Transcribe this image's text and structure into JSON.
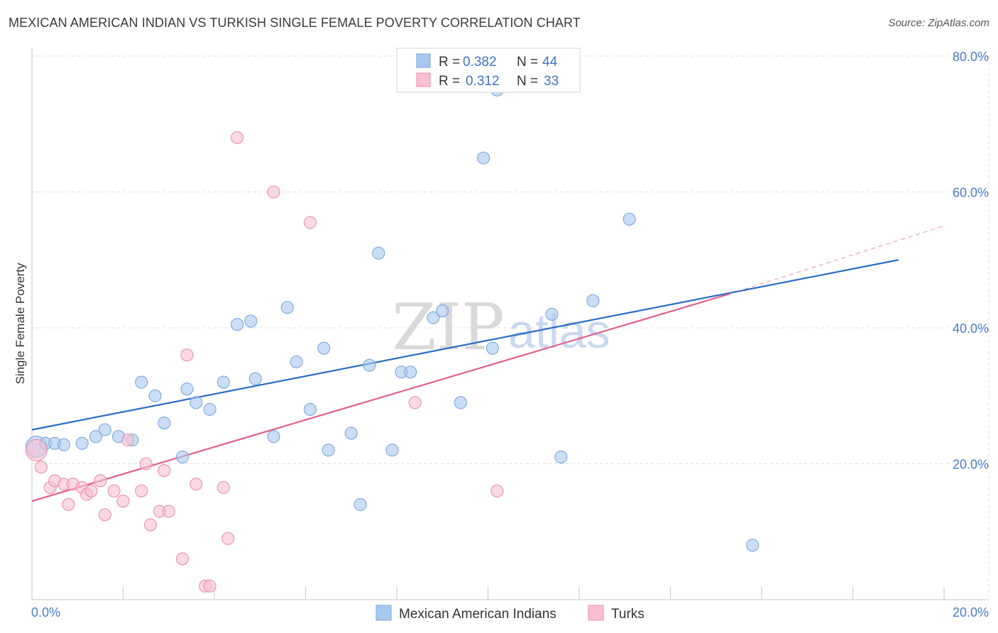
{
  "title": "MEXICAN AMERICAN INDIAN VS TURKISH SINGLE FEMALE POVERTY CORRELATION CHART",
  "source": "Source: ZipAtlas.com",
  "watermark": {
    "zip": "ZIP",
    "atlas": "atlas"
  },
  "legend": {
    "r_label": "R =",
    "n_label": "N =",
    "entries": [
      {
        "r": "0.382",
        "n": "44"
      },
      {
        "r": "0.312",
        "n": "33"
      }
    ]
  },
  "chart_data": {
    "type": "scatter",
    "title": "MEXICAN AMERICAN INDIAN VS TURKISH SINGLE FEMALE POVERTY CORRELATION CHART",
    "xlabel": "",
    "ylabel": "Single Female Poverty",
    "xlim": [
      0,
      20
    ],
    "ylim": [
      0,
      80
    ],
    "x_tick_labels": [
      {
        "value": 0,
        "label": "0.0%"
      },
      {
        "value": 20,
        "label": "20.0%"
      }
    ],
    "y_tick_labels": [
      {
        "value": 20,
        "label": "20.0%"
      },
      {
        "value": 40,
        "label": "40.0%"
      },
      {
        "value": 60,
        "label": "60.0%"
      },
      {
        "value": 80,
        "label": "80.0%"
      }
    ],
    "grid": true,
    "legend_position": "top-center",
    "series": [
      {
        "name": "Mexican American Indians",
        "color": "#a9c8f0",
        "stroke": "#7aa6dd",
        "line_color": "#2a6cc7",
        "trend": {
          "x": [
            0,
            19
          ],
          "y": [
            25,
            50
          ]
        },
        "points": [
          [
            0.1,
            22.5,
            "large"
          ],
          [
            0.3,
            23.0
          ],
          [
            0.5,
            23.0
          ],
          [
            0.7,
            22.8
          ],
          [
            1.1,
            23.0
          ],
          [
            1.4,
            24.0
          ],
          [
            1.6,
            25.0
          ],
          [
            1.9,
            24.0
          ],
          [
            2.2,
            23.5
          ],
          [
            2.4,
            32.0
          ],
          [
            2.7,
            30.0
          ],
          [
            2.9,
            26.0
          ],
          [
            3.3,
            21.0
          ],
          [
            3.4,
            31.0
          ],
          [
            3.6,
            29.0
          ],
          [
            3.9,
            28.0
          ],
          [
            4.2,
            32.0
          ],
          [
            4.5,
            40.5
          ],
          [
            4.8,
            41.0
          ],
          [
            4.9,
            32.5
          ],
          [
            5.3,
            24.0
          ],
          [
            5.6,
            43.0
          ],
          [
            5.8,
            35.0
          ],
          [
            6.1,
            28.0
          ],
          [
            6.4,
            37.0
          ],
          [
            6.5,
            22.0
          ],
          [
            7.0,
            24.5
          ],
          [
            7.2,
            14.0
          ],
          [
            7.4,
            34.5
          ],
          [
            7.6,
            51.0
          ],
          [
            7.9,
            22.0
          ],
          [
            8.1,
            33.5
          ],
          [
            8.3,
            33.5
          ],
          [
            8.8,
            41.5
          ],
          [
            9.0,
            42.5
          ],
          [
            9.4,
            29.0
          ],
          [
            9.9,
            65.0
          ],
          [
            10.1,
            37.0
          ],
          [
            10.2,
            75.0
          ],
          [
            11.4,
            42.0
          ],
          [
            11.6,
            21.0
          ],
          [
            12.3,
            44.0
          ],
          [
            13.1,
            56.0
          ],
          [
            15.8,
            8.0
          ]
        ]
      },
      {
        "name": "Turks",
        "color": "#f7bfd0",
        "stroke": "#eb8fac",
        "line_color": "#e0608a",
        "trend": {
          "x": [
            0,
            15.3
          ],
          "y": [
            14.5,
            45
          ]
        },
        "trend_dashed": {
          "x": [
            15.3,
            20
          ],
          "y": [
            45,
            55
          ]
        },
        "points": [
          [
            0.1,
            22.0,
            "large"
          ],
          [
            0.2,
            19.5
          ],
          [
            0.4,
            16.5
          ],
          [
            0.5,
            17.5
          ],
          [
            0.7,
            17.0
          ],
          [
            0.8,
            14.0
          ],
          [
            0.9,
            17.0
          ],
          [
            1.1,
            16.5
          ],
          [
            1.2,
            15.5
          ],
          [
            1.3,
            16.0
          ],
          [
            1.5,
            17.5
          ],
          [
            1.6,
            12.5
          ],
          [
            1.8,
            16.0
          ],
          [
            2.0,
            14.5
          ],
          [
            2.1,
            23.5
          ],
          [
            2.4,
            16.0
          ],
          [
            2.5,
            20.0
          ],
          [
            2.6,
            11.0
          ],
          [
            2.8,
            13.0
          ],
          [
            2.9,
            19.0
          ],
          [
            3.0,
            13.0
          ],
          [
            3.3,
            6.0
          ],
          [
            3.4,
            36.0
          ],
          [
            3.6,
            17.0
          ],
          [
            3.8,
            2.0
          ],
          [
            3.9,
            2.0
          ],
          [
            4.2,
            16.5
          ],
          [
            4.3,
            9.0
          ],
          [
            4.5,
            68.0
          ],
          [
            5.3,
            60.0
          ],
          [
            6.1,
            55.5
          ],
          [
            8.4,
            29.0
          ],
          [
            10.2,
            16.0
          ]
        ]
      }
    ]
  }
}
